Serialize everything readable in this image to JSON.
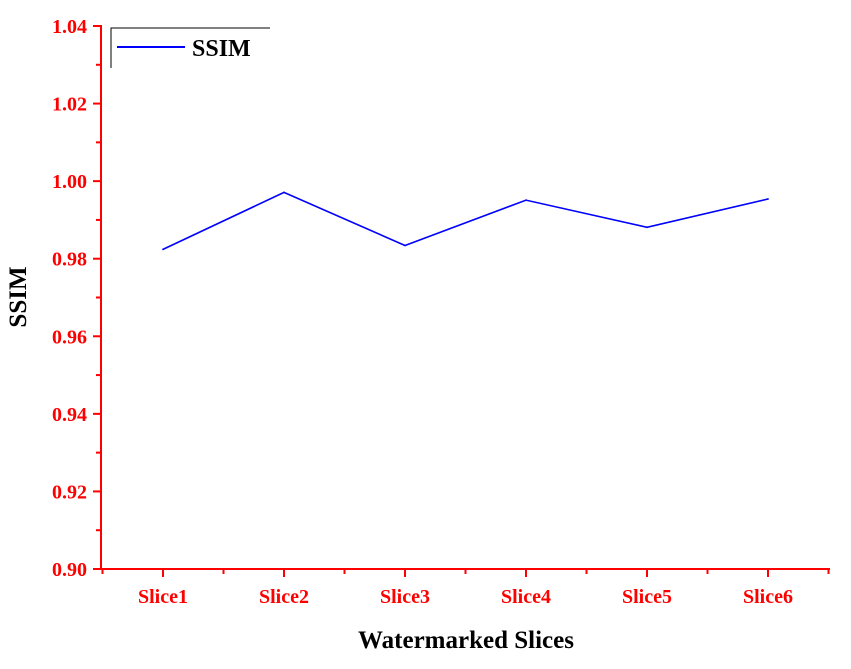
{
  "chart_data": {
    "type": "line",
    "categories": [
      "Slice1",
      "Slice2",
      "Slice3",
      "Slice4",
      "Slice5",
      "Slice6"
    ],
    "series": [
      {
        "name": "SSIM",
        "color": "#0000ff",
        "values": [
          0.9824,
          0.9971,
          0.9834,
          0.9951,
          0.9881,
          0.9954
        ]
      }
    ],
    "title": "",
    "xlabel": "Watermarked Slices",
    "ylabel": "SSIM",
    "ylim": [
      0.9,
      1.04
    ],
    "yticks": [
      "0.90",
      "0.92",
      "0.94",
      "0.96",
      "0.98",
      "1.00",
      "1.02",
      "1.04"
    ],
    "grid": false,
    "legend_position": "top-left",
    "tick_label_color": "#ff0000",
    "axis_color": "#ff0000"
  }
}
